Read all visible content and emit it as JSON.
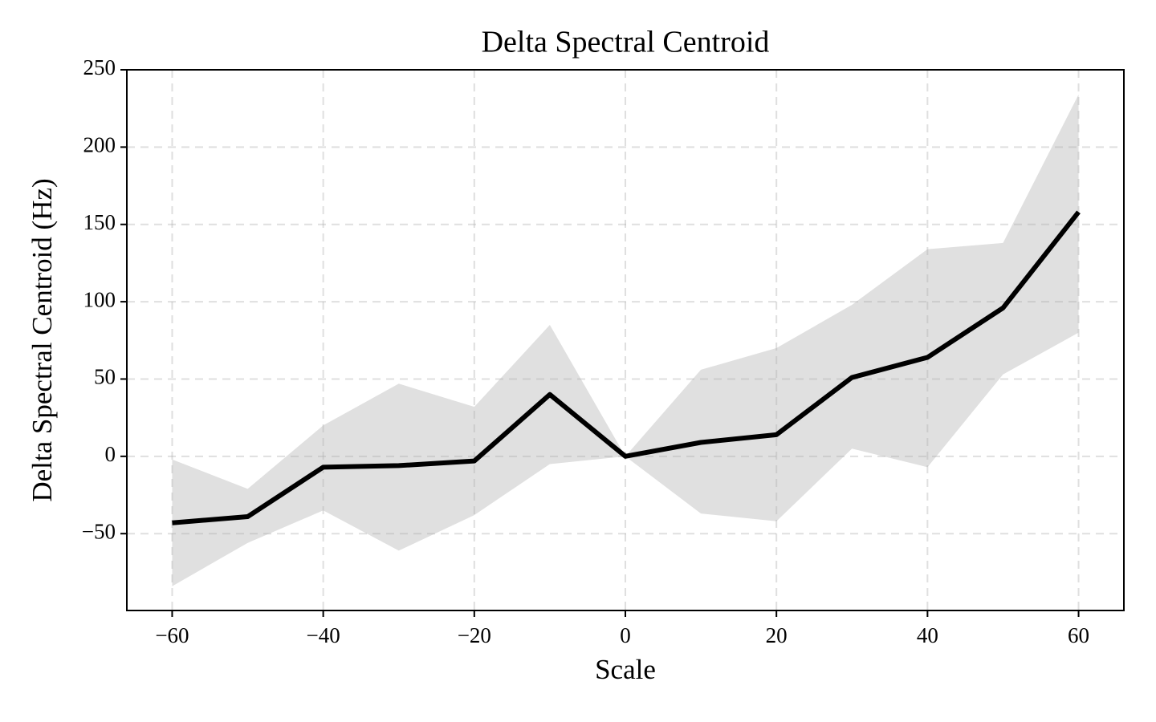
{
  "chart_data": {
    "type": "line",
    "title": "Delta Spectral Centroid",
    "x_label": "Scale",
    "y_label": "Delta Spectral Centroid (Hz)",
    "x": [
      -60,
      -50,
      -40,
      -30,
      -20,
      -10,
      0,
      10,
      20,
      30,
      40,
      50,
      60
    ],
    "series": [
      {
        "color": "#000000",
        "values": [
          -43,
          -39,
          -7,
          -6,
          -3,
          40,
          0,
          9,
          14,
          51,
          64,
          96,
          158
        ]
      }
    ],
    "band": {
      "color": "#e0e0e0",
      "upper": [
        -2,
        -21,
        20,
        47,
        32,
        85,
        0,
        56,
        70,
        98,
        134,
        138,
        234
      ],
      "lower": [
        -84,
        -56,
        -35,
        -61,
        -38,
        -5,
        0,
        -37,
        -42,
        5,
        -7,
        53,
        80
      ]
    },
    "xlim": [
      -66,
      66
    ],
    "ylim": [
      -99.7,
      250
    ],
    "xticks": [
      {
        "value": -60,
        "label": "−60"
      },
      {
        "value": -40,
        "label": "−40"
      },
      {
        "value": -20,
        "label": "−20"
      },
      0,
      20,
      40,
      60
    ],
    "yticks": [
      {
        "value": -50,
        "label": "−50"
      },
      0,
      50,
      100,
      150,
      200,
      250
    ],
    "grid": true
  }
}
